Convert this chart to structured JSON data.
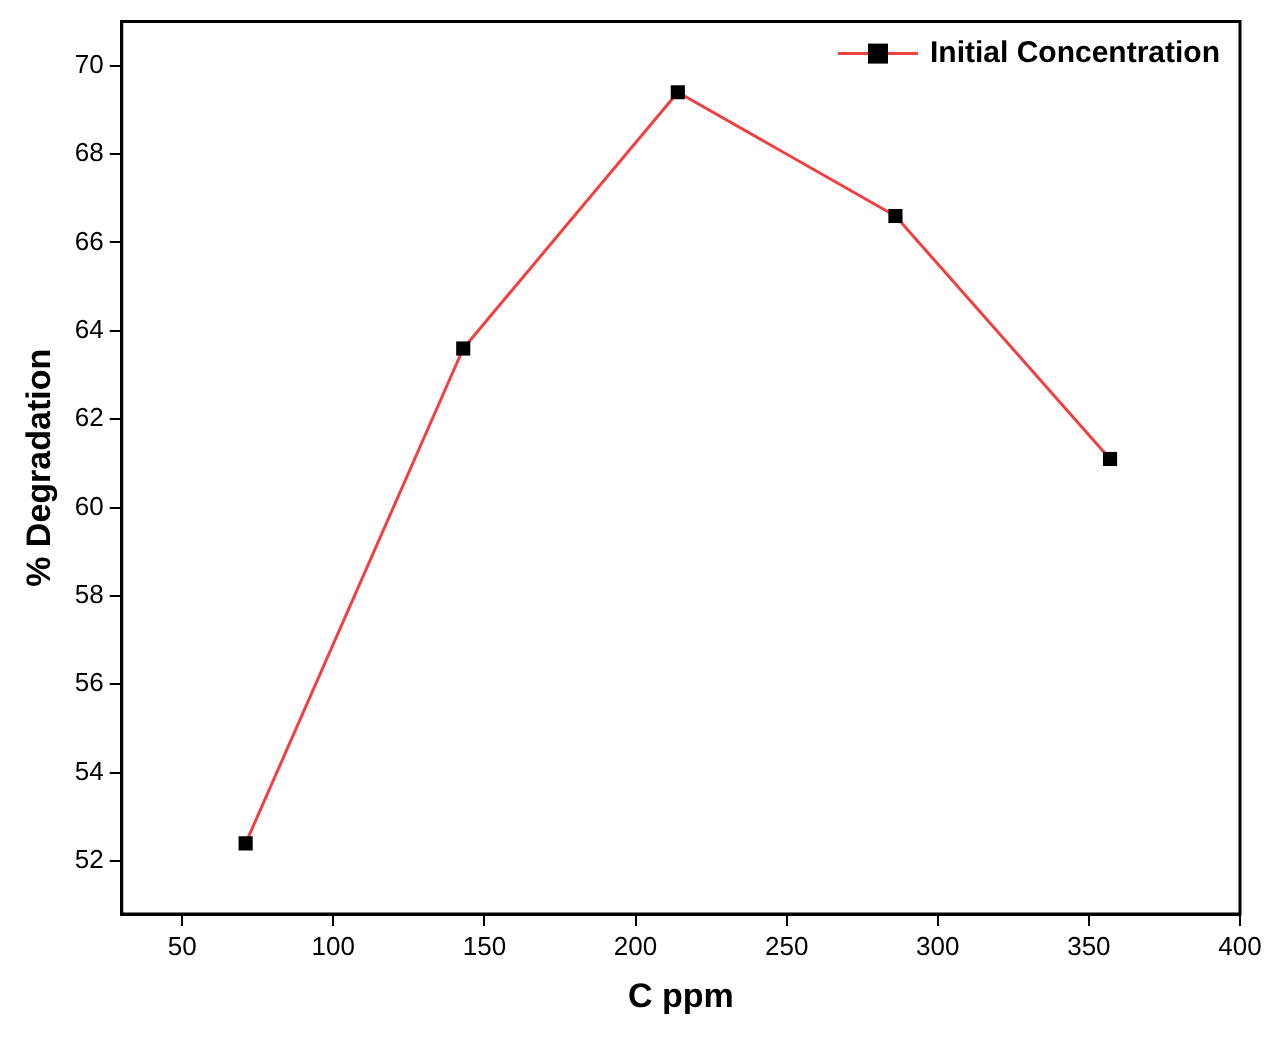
{
  "chart_data": {
    "type": "line",
    "xlabel": "C ppm",
    "ylabel": "% Degradation",
    "x": [
      71,
      143,
      214,
      286,
      357
    ],
    "series": [
      {
        "name": "Initial Concentration",
        "color": "#f04040",
        "values": [
          52.4,
          63.6,
          69.4,
          66.6,
          61.1
        ]
      }
    ],
    "xlim": [
      30,
      400
    ],
    "xticks": [
      50,
      100,
      150,
      200,
      250,
      300,
      350,
      400
    ],
    "ylim": [
      50.8,
      71
    ],
    "yticks": [
      52,
      54,
      56,
      58,
      60,
      62,
      64,
      66,
      68,
      70
    ],
    "grid": false,
    "legend": "top right",
    "marker": "square",
    "line_style": "solid"
  }
}
